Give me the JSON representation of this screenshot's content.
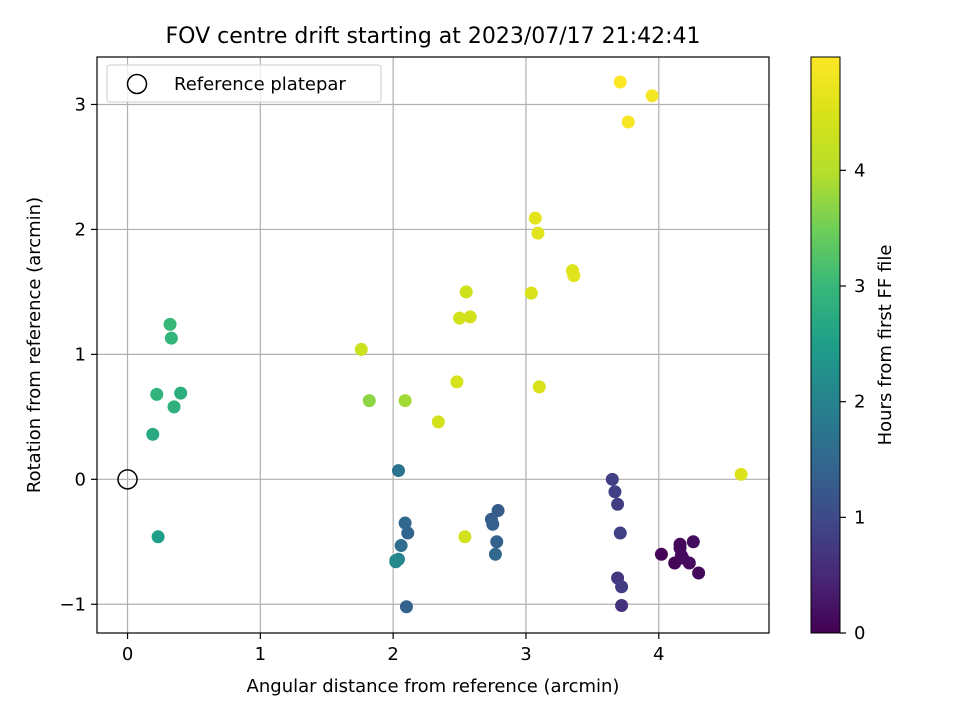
{
  "chart_data": {
    "type": "scatter",
    "title": "FOV centre drift starting at 2023/07/17 21:42:41",
    "xlabel": "Angular distance from reference (arcmin)",
    "ylabel": "Rotation from reference (arcmin)",
    "xlim": [
      -0.23,
      4.83
    ],
    "ylim": [
      -1.23,
      3.38
    ],
    "xticks": [
      0,
      1,
      2,
      3,
      4
    ],
    "yticks": [
      -1,
      0,
      1,
      2,
      3
    ],
    "grid": true,
    "legend": {
      "position": "top-left",
      "entries": [
        "Reference platepar"
      ]
    },
    "reference_point": {
      "x": 0,
      "y": 0
    },
    "colorbar": {
      "label": "Hours from first FF file",
      "range": [
        0,
        4.98
      ],
      "ticks": [
        0,
        1,
        2,
        3,
        4
      ],
      "colormap": "viridis"
    },
    "series": [
      {
        "x": [
          4.02,
          4.12,
          4.16,
          4.16,
          4.17,
          4.18,
          4.23,
          4.26,
          4.3,
          3.65,
          3.67,
          3.69,
          3.71,
          3.69,
          3.72,
          3.72,
          2.02,
          2.04,
          2.02,
          2.06,
          2.09,
          2.11,
          2.1,
          2.74,
          2.75,
          2.77,
          2.78,
          2.79,
          2.04,
          0.19,
          0.23,
          0.22,
          0.32,
          0.33,
          0.35,
          0.4,
          1.82,
          2.09,
          1.76,
          2.34,
          2.48,
          2.5,
          2.55,
          2.58,
          2.54,
          3.04,
          3.1,
          3.09,
          3.07,
          3.35,
          3.36,
          4.62,
          3.71,
          3.77,
          3.95
        ],
        "y": [
          -0.6,
          -0.67,
          -0.52,
          -0.55,
          -0.61,
          -0.63,
          -0.67,
          -0.5,
          -0.75,
          0.0,
          -0.1,
          -0.2,
          -0.43,
          -0.79,
          -0.86,
          -1.01,
          -0.65,
          -0.64,
          -0.66,
          -0.53,
          -0.35,
          -0.43,
          -1.02,
          -0.32,
          -0.36,
          -0.6,
          -0.5,
          -0.25,
          0.07,
          0.36,
          -0.46,
          0.68,
          1.24,
          1.13,
          0.58,
          0.69,
          0.63,
          0.63,
          1.04,
          0.46,
          0.78,
          1.29,
          1.5,
          1.3,
          -0.46,
          1.49,
          0.74,
          1.97,
          2.09,
          1.67,
          1.63,
          0.04,
          3.18,
          2.86,
          3.07
        ],
        "c": [
          0.05,
          0.05,
          0.07,
          0.1,
          0.12,
          0.12,
          0.12,
          0.15,
          0.1,
          0.85,
          0.85,
          0.8,
          0.85,
          0.7,
          0.8,
          0.65,
          2.2,
          2.0,
          2.1,
          1.6,
          1.5,
          1.45,
          1.4,
          1.3,
          1.35,
          1.5,
          1.4,
          1.3,
          1.7,
          2.7,
          2.5,
          2.9,
          3.0,
          2.95,
          2.85,
          2.8,
          3.7,
          3.85,
          4.3,
          4.4,
          4.45,
          4.4,
          4.35,
          4.4,
          4.4,
          4.5,
          4.5,
          4.6,
          4.65,
          4.55,
          4.6,
          4.55,
          4.95,
          4.9,
          4.85
        ]
      }
    ]
  }
}
